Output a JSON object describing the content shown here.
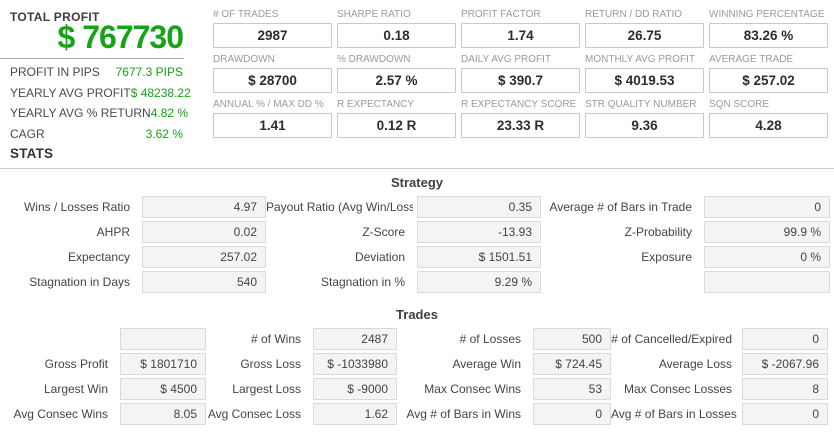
{
  "colors": {
    "accent_green": "#16a316",
    "box_fill": "#f4f4f4",
    "box_border": "#d9d9d9",
    "metric_box_border": "#c8c8c8"
  },
  "summary": {
    "title": "TOTAL PROFIT",
    "total_profit": "$ 767730",
    "rows": [
      {
        "label": "PROFIT IN PIPS",
        "value": "7677.3 PIPS"
      },
      {
        "label": "YEARLY AVG PROFIT",
        "value": "$ 48238.22"
      },
      {
        "label": "YEARLY AVG % RETURN",
        "value": "4.82 %"
      },
      {
        "label": "CAGR",
        "value": "3.62 %"
      }
    ]
  },
  "stats_header": "STATS",
  "top_grid": {
    "cells": [
      {
        "label": "# OF TRADES",
        "value": "2987"
      },
      {
        "label": "SHARPE RATIO",
        "value": "0.18"
      },
      {
        "label": "PROFIT FACTOR",
        "value": "1.74"
      },
      {
        "label": "RETURN / DD RATIO",
        "value": "26.75"
      },
      {
        "label": "WINNING PERCENTAGE",
        "value": "83.26 %"
      },
      {
        "label": "DRAWDOWN",
        "value": "$ 28700"
      },
      {
        "label": "% DRAWDOWN",
        "value": "2.57 %"
      },
      {
        "label": "DAILY AVG PROFIT",
        "value": "$ 390.7"
      },
      {
        "label": "MONTHLY AVG PROFIT",
        "value": "$ 4019.53"
      },
      {
        "label": "AVERAGE TRADE",
        "value": "$ 257.02"
      },
      {
        "label": "ANNUAL % / MAX DD %",
        "value": "1.41"
      },
      {
        "label": "R EXPECTANCY",
        "value": "0.12 R"
      },
      {
        "label": "R EXPECTANCY SCORE",
        "value": "23.33 R"
      },
      {
        "label": "STR QUALITY NUMBER",
        "value": "9.36"
      },
      {
        "label": "SQN SCORE",
        "value": "4.28"
      }
    ]
  },
  "strategy": {
    "title": "Strategy",
    "rows": [
      [
        {
          "label": "Wins / Losses Ratio",
          "value": "4.97"
        },
        {
          "label": "Payout Ratio (Avg Win/Loss)",
          "value": "0.35"
        },
        {
          "label": "Average # of Bars in Trade",
          "value": "0"
        }
      ],
      [
        {
          "label": "AHPR",
          "value": "0.02"
        },
        {
          "label": "Z-Score",
          "value": "-13.93"
        },
        {
          "label": "Z-Probability",
          "value": "99.9 %"
        }
      ],
      [
        {
          "label": "Expectancy",
          "value": "257.02"
        },
        {
          "label": "Deviation",
          "value": "$ 1501.51"
        },
        {
          "label": "Exposure",
          "value": "0 %"
        }
      ],
      [
        {
          "label": "Stagnation in Days",
          "value": "540"
        },
        {
          "label": "Stagnation in %",
          "value": "9.29 %"
        },
        {
          "label": "",
          "value": ""
        }
      ]
    ]
  },
  "trades": {
    "title": "Trades",
    "rows": [
      [
        {
          "label": "",
          "value": ""
        },
        {
          "label": "# of Wins",
          "value": "2487"
        },
        {
          "label": "# of Losses",
          "value": "500"
        },
        {
          "label": "# of Cancelled/Expired",
          "value": "0"
        }
      ],
      [
        {
          "label": "Gross Profit",
          "value": "$ 1801710"
        },
        {
          "label": "Gross Loss",
          "value": "$ -1033980"
        },
        {
          "label": "Average Win",
          "value": "$ 724.45"
        },
        {
          "label": "Average Loss",
          "value": "$ -2067.96"
        }
      ],
      [
        {
          "label": "Largest Win",
          "value": "$ 4500"
        },
        {
          "label": "Largest Loss",
          "value": "$ -9000"
        },
        {
          "label": "Max Consec Wins",
          "value": "53"
        },
        {
          "label": "Max Consec Losses",
          "value": "8"
        }
      ],
      [
        {
          "label": "Avg Consec Wins",
          "value": "8.05"
        },
        {
          "label": "Avg Consec Loss",
          "value": "1.62"
        },
        {
          "label": "Avg # of Bars in Wins",
          "value": "0"
        },
        {
          "label": "Avg # of Bars in Losses",
          "value": "0"
        }
      ]
    ]
  }
}
